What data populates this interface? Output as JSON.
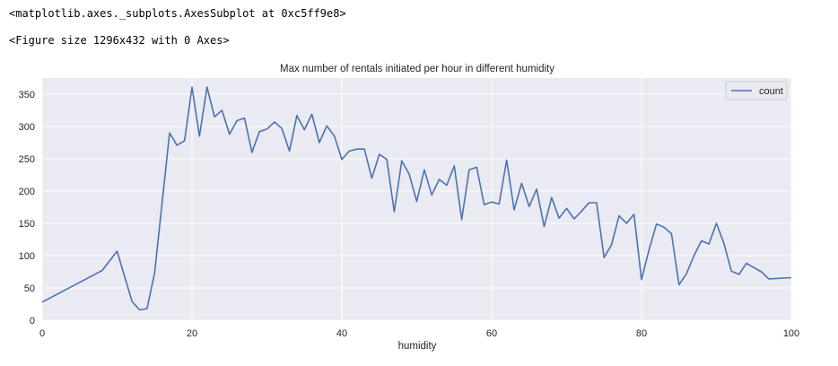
{
  "output": {
    "line1": "<matplotlib.axes._subplots.AxesSubplot at 0xc5ff9e8>",
    "line2": "<Figure size 1296x432 with 0 Axes>"
  },
  "chart_data": {
    "type": "line",
    "title": "Max number of rentals initiated per hour in different humidity",
    "xlabel": "humidity",
    "ylabel": "",
    "xlim": [
      0,
      100
    ],
    "ylim": [
      0,
      375
    ],
    "xticks": [
      0,
      20,
      40,
      60,
      80,
      100
    ],
    "yticks": [
      0,
      50,
      100,
      150,
      200,
      250,
      300,
      350
    ],
    "grid": true,
    "legend_position": "top-right",
    "colors": {
      "line": "#4c72b0",
      "background": "#eaeaf2",
      "grid": "#ffffff"
    },
    "series": [
      {
        "name": "count",
        "x": [
          0,
          8,
          10,
          12,
          13,
          14,
          15,
          17,
          18,
          19,
          20,
          21,
          22,
          23,
          24,
          25,
          26,
          27,
          28,
          29,
          30,
          31,
          32,
          33,
          34,
          35,
          36,
          37,
          38,
          39,
          40,
          41,
          42,
          43,
          44,
          45,
          46,
          47,
          48,
          49,
          50,
          51,
          52,
          53,
          54,
          55,
          56,
          57,
          58,
          59,
          60,
          61,
          62,
          63,
          64,
          65,
          66,
          67,
          68,
          69,
          70,
          71,
          72,
          73,
          74,
          75,
          76,
          77,
          78,
          79,
          80,
          81,
          82,
          83,
          84,
          85,
          86,
          87,
          88,
          89,
          90,
          91,
          92,
          93,
          94,
          96,
          97,
          100
        ],
        "values": [
          28,
          77,
          107,
          29,
          16,
          18,
          73,
          290,
          271,
          278,
          361,
          285,
          361,
          315,
          325,
          288,
          309,
          313,
          260,
          292,
          296,
          307,
          297,
          262,
          317,
          295,
          319,
          275,
          301,
          285,
          249,
          262,
          265,
          265,
          220,
          257,
          249,
          168,
          247,
          226,
          184,
          233,
          194,
          218,
          209,
          239,
          156,
          233,
          237,
          179,
          183,
          180,
          248,
          171,
          212,
          176,
          203,
          145,
          190,
          158,
          173,
          157,
          169,
          182,
          182,
          97,
          117,
          162,
          150,
          164,
          63,
          109,
          149,
          144,
          134,
          55,
          72,
          100,
          123,
          118,
          150,
          119,
          76,
          71,
          88,
          75,
          64,
          66
        ]
      }
    ]
  }
}
